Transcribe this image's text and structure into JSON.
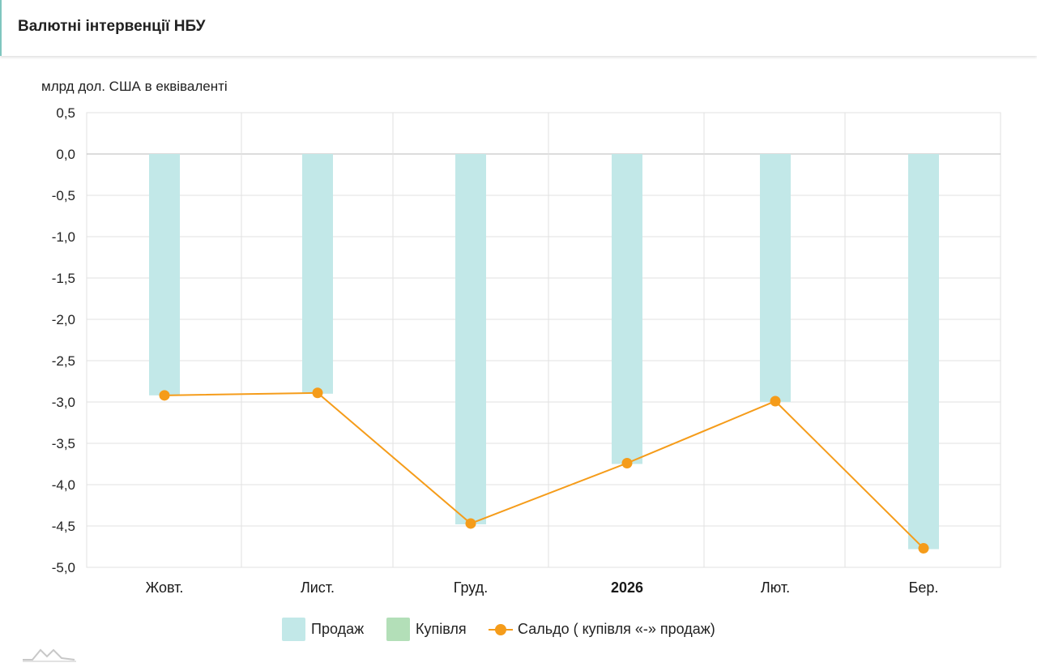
{
  "header": {
    "title": "Валютні інтервенції НБУ"
  },
  "colors": {
    "sales": "#c2e8e8",
    "purchase": "#b3dfb8",
    "balance": "#f59c1a"
  },
  "chart_data": {
    "type": "bar",
    "ylabel": "млрд дол. США в еквіваленті",
    "ylim": [
      -5.0,
      0.5
    ],
    "yticks": [
      "0,5",
      "0,0",
      "-0,5",
      "-1,0",
      "-1,5",
      "-2,0",
      "-2,5",
      "-3,0",
      "-3,5",
      "-4,0",
      "-4,5",
      "-5,0"
    ],
    "categories": [
      "Жовт.",
      "Лист.",
      "Груд.",
      "2026",
      "Лют.",
      "Бер."
    ],
    "series": [
      {
        "name": "Продаж",
        "kind": "bar",
        "values": [
          -2.92,
          -2.9,
          -4.48,
          -3.75,
          -3.0,
          -4.78
        ]
      },
      {
        "name": "Купівля",
        "kind": "bar",
        "values": [
          0,
          0,
          0,
          0,
          0,
          0
        ]
      },
      {
        "name": "Сальдо ( купівля «-» продаж)",
        "kind": "line",
        "values": [
          -2.92,
          -2.89,
          -4.47,
          -3.74,
          -2.99,
          -4.77
        ]
      }
    ],
    "grid": true,
    "legend": "bottom"
  }
}
